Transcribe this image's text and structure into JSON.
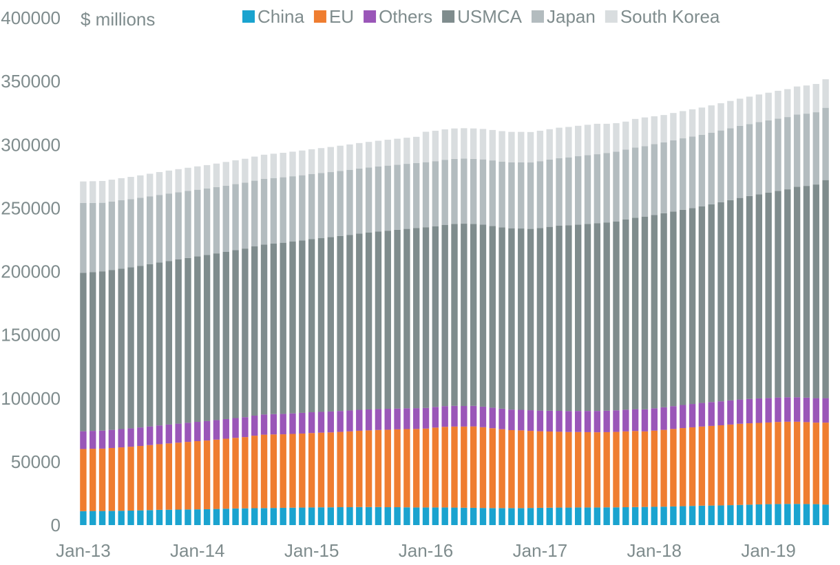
{
  "chart_data": {
    "type": "bar",
    "stacked": true,
    "unit_label": "$ millions",
    "ylim": [
      0,
      400000
    ],
    "y_ticks": [
      "0",
      "50000",
      "100000",
      "150000",
      "200000",
      "250000",
      "300000",
      "350000",
      "400000"
    ],
    "x_tick_labels": [
      "Jan-13",
      "Jan-14",
      "Jan-15",
      "Jan-16",
      "Jan-17",
      "Jan-18",
      "Jan-19"
    ],
    "legend_position": "top",
    "grid": false,
    "categories": [
      "2013-01",
      "2013-02",
      "2013-03",
      "2013-04",
      "2013-05",
      "2013-06",
      "2013-07",
      "2013-08",
      "2013-09",
      "2013-10",
      "2013-11",
      "2013-12",
      "2014-01",
      "2014-02",
      "2014-03",
      "2014-04",
      "2014-05",
      "2014-06",
      "2014-07",
      "2014-08",
      "2014-09",
      "2014-10",
      "2014-11",
      "2014-12",
      "2015-01",
      "2015-02",
      "2015-03",
      "2015-04",
      "2015-05",
      "2015-06",
      "2015-07",
      "2015-08",
      "2015-09",
      "2015-10",
      "2015-11",
      "2015-12",
      "2016-01",
      "2016-02",
      "2016-03",
      "2016-04",
      "2016-05",
      "2016-06",
      "2016-07",
      "2016-08",
      "2016-09",
      "2016-10",
      "2016-11",
      "2016-12",
      "2017-01",
      "2017-02",
      "2017-03",
      "2017-04",
      "2017-05",
      "2017-06",
      "2017-07",
      "2017-08",
      "2017-09",
      "2017-10",
      "2017-11",
      "2017-12",
      "2018-01",
      "2018-02",
      "2018-03",
      "2018-04",
      "2018-05",
      "2018-06",
      "2018-07",
      "2018-08",
      "2018-09",
      "2018-10",
      "2018-11",
      "2018-12",
      "2019-01",
      "2019-02",
      "2019-03",
      "2019-04",
      "2019-05",
      "2019-06",
      "2019-07"
    ],
    "series": [
      {
        "name": "China",
        "color": "#1aa3cf",
        "values": [
          11000,
          11100,
          11100,
          11200,
          11300,
          11400,
          11600,
          11800,
          12000,
          12100,
          12200,
          12300,
          12400,
          12500,
          12700,
          12900,
          13100,
          13200,
          13300,
          13400,
          13500,
          13600,
          13700,
          13800,
          13900,
          14000,
          14000,
          14100,
          14100,
          14200,
          14200,
          14200,
          14100,
          14100,
          14000,
          13900,
          13900,
          13900,
          13900,
          13800,
          13700,
          13600,
          13500,
          13400,
          13400,
          13400,
          13400,
          13500,
          13600,
          13700,
          13800,
          13800,
          13900,
          13900,
          13900,
          14000,
          14000,
          14100,
          14200,
          14300,
          14400,
          14500,
          14700,
          14900,
          15100,
          15300,
          15400,
          15500,
          15700,
          15900,
          16100,
          16300,
          16500,
          16600,
          16700,
          16700,
          16600,
          16500,
          16200
        ]
      },
      {
        "name": "EU",
        "color": "#ef7d30",
        "values": [
          49000,
          49100,
          49200,
          49600,
          50000,
          50400,
          50800,
          51300,
          51800,
          52300,
          52800,
          53300,
          53800,
          54200,
          54700,
          55200,
          55700,
          56200,
          57200,
          57900,
          58000,
          58000,
          58200,
          58400,
          58700,
          58900,
          59100,
          59400,
          59800,
          60200,
          60500,
          60800,
          61100,
          61400,
          61700,
          61900,
          62200,
          63000,
          63600,
          63900,
          64000,
          64200,
          63700,
          63000,
          62200,
          61500,
          61300,
          60800,
          60400,
          60100,
          59800,
          59600,
          59500,
          59400,
          59300,
          59300,
          59500,
          59800,
          60000,
          59600,
          60100,
          60600,
          61100,
          61600,
          62000,
          62400,
          62800,
          63200,
          63600,
          64000,
          64200,
          64300,
          64400,
          64700,
          64800,
          64800,
          64600,
          64300,
          64600
        ]
      },
      {
        "name": "Others",
        "color": "#9a56b8",
        "values": [
          14000,
          14100,
          14200,
          14300,
          14400,
          14500,
          14600,
          14700,
          14800,
          14900,
          15000,
          15100,
          15200,
          15300,
          15400,
          15500,
          15600,
          15700,
          15800,
          15900,
          16000,
          16100,
          16200,
          16300,
          16400,
          16400,
          16500,
          16500,
          16500,
          16500,
          16500,
          16500,
          16500,
          16400,
          16400,
          16400,
          16300,
          16300,
          16300,
          16300,
          16200,
          16200,
          16200,
          16200,
          16200,
          16200,
          16200,
          16300,
          16300,
          16400,
          16500,
          16500,
          16600,
          16700,
          16800,
          16900,
          17000,
          17100,
          17200,
          17400,
          17600,
          17800,
          18000,
          18200,
          18400,
          18600,
          18800,
          18900,
          19000,
          19100,
          19200,
          19300,
          19300,
          19300,
          19300,
          19300,
          19300,
          19300,
          19300
        ]
      },
      {
        "name": "USMCA",
        "color": "#7f8c8d",
        "values": [
          125000,
          125200,
          125500,
          126000,
          126500,
          127000,
          127500,
          128000,
          128500,
          129000,
          129500,
          130000,
          130500,
          131000,
          131500,
          132000,
          132500,
          133000,
          133500,
          134000,
          134500,
          135000,
          135500,
          136000,
          136500,
          137000,
          137500,
          138000,
          138500,
          139000,
          139500,
          140000,
          140500,
          141000,
          141500,
          142000,
          142500,
          142500,
          143000,
          143500,
          143800,
          143500,
          143500,
          143300,
          143000,
          143000,
          143000,
          143000,
          144000,
          145000,
          146000,
          146500,
          147000,
          147500,
          148000,
          148500,
          149000,
          150000,
          151000,
          152000,
          152500,
          153000,
          153500,
          154000,
          154500,
          155000,
          156000,
          157000,
          158000,
          159000,
          160000,
          161000,
          162000,
          163000,
          164000,
          166000,
          167000,
          168500,
          172000
        ]
      },
      {
        "name": "Japan",
        "color": "#b3bcbf",
        "values": [
          55000,
          54600,
          54200,
          54000,
          54000,
          53800,
          53600,
          53500,
          53300,
          53200,
          53000,
          52800,
          52600,
          52400,
          52200,
          52100,
          52000,
          51900,
          51800,
          51800,
          51700,
          51600,
          51500,
          51400,
          51300,
          51300,
          51300,
          51300,
          51300,
          51300,
          51300,
          51300,
          51300,
          51300,
          51300,
          51300,
          51300,
          51300,
          51300,
          51300,
          51300,
          51300,
          51500,
          51700,
          51900,
          52000,
          52200,
          52400,
          52700,
          53000,
          53300,
          53600,
          53900,
          54200,
          54500,
          54800,
          55000,
          55200,
          55400,
          55600,
          55800,
          56000,
          56200,
          56300,
          56400,
          56500,
          56500,
          56600,
          56700,
          56800,
          56800,
          56900,
          57000,
          57000,
          57000,
          57000,
          57000,
          57000,
          57000
        ]
      },
      {
        "name": "South Korea",
        "color": "#d9dddf",
        "values": [
          17000,
          17100,
          17200,
          17300,
          17400,
          17500,
          17700,
          17800,
          18000,
          18100,
          18200,
          18300,
          18400,
          18500,
          18600,
          18700,
          18800,
          18900,
          19000,
          19100,
          19200,
          19300,
          19400,
          19500,
          19600,
          19700,
          19800,
          19900,
          20000,
          20100,
          20200,
          20300,
          20400,
          20500,
          20600,
          20700,
          24000,
          24000,
          24000,
          24000,
          24000,
          24000,
          24000,
          24000,
          24000,
          24000,
          24000,
          24000,
          24000,
          24000,
          24000,
          24000,
          24000,
          24000,
          24000,
          23000,
          22500,
          22000,
          22500,
          22600,
          22000,
          21500,
          21500,
          21500,
          21500,
          21500,
          21500,
          21500,
          21500,
          21500,
          21600,
          21800,
          21800,
          21900,
          22000,
          22100,
          22200,
          22300,
          22500
        ]
      }
    ]
  }
}
